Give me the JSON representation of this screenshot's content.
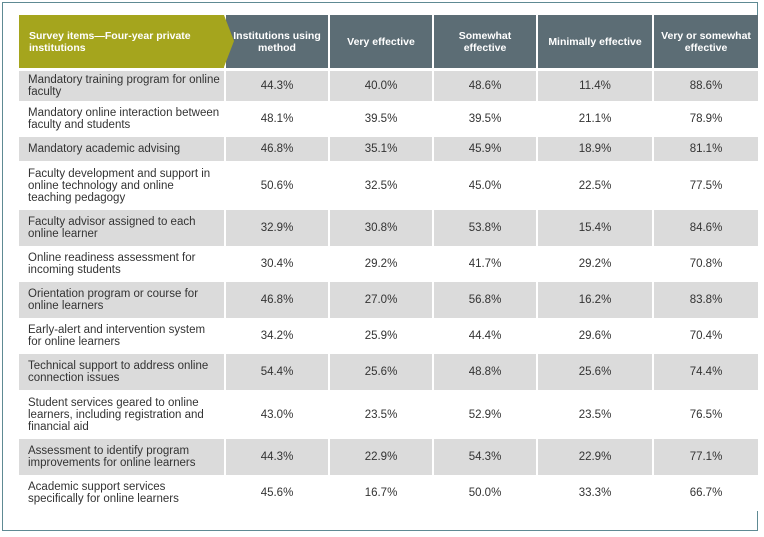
{
  "table": {
    "headers": [
      "Survey items—Four-year private institutions",
      "Institutions using method",
      "Very effective",
      "Somewhat effective",
      "Minimally effective",
      "Very or somewhat effective"
    ],
    "rows": [
      {
        "item": "Mandatory training program for online faculty",
        "values": [
          "44.3%",
          "40.0%",
          "48.6%",
          "11.4%",
          "88.6%"
        ]
      },
      {
        "item": "Mandatory online interaction between faculty and students",
        "values": [
          "48.1%",
          "39.5%",
          "39.5%",
          "21.1%",
          "78.9%"
        ]
      },
      {
        "item": "Mandatory academic advising",
        "values": [
          "46.8%",
          "35.1%",
          "45.9%",
          "18.9%",
          "81.1%"
        ]
      },
      {
        "item": "Faculty development and support in online technology and online teaching pedagogy",
        "values": [
          "50.6%",
          "32.5%",
          "45.0%",
          "22.5%",
          "77.5%"
        ]
      },
      {
        "item": "Faculty advisor assigned to each online learner",
        "values": [
          "32.9%",
          "30.8%",
          "53.8%",
          "15.4%",
          "84.6%"
        ]
      },
      {
        "item": "Online readiness assessment for incoming students",
        "values": [
          "30.4%",
          "29.2%",
          "41.7%",
          "29.2%",
          "70.8%"
        ]
      },
      {
        "item": "Orientation program or course for online learners",
        "values": [
          "46.8%",
          "27.0%",
          "56.8%",
          "16.2%",
          "83.8%"
        ]
      },
      {
        "item": "Early-alert and intervention system for online learners",
        "values": [
          "34.2%",
          "25.9%",
          "44.4%",
          "29.6%",
          "70.4%"
        ]
      },
      {
        "item": "Technical support to address online connection issues",
        "values": [
          "54.4%",
          "25.6%",
          "48.8%",
          "25.6%",
          "74.4%"
        ]
      },
      {
        "item": "Student services geared to online learners, including registration and financial aid",
        "values": [
          "43.0%",
          "23.5%",
          "52.9%",
          "23.5%",
          "76.5%"
        ]
      },
      {
        "item": "Assessment to identify program improvements for online learners",
        "values": [
          "44.3%",
          "22.9%",
          "54.3%",
          "22.9%",
          "77.1%"
        ]
      },
      {
        "item": "Academic support services specifically for online learners",
        "values": [
          "45.6%",
          "16.7%",
          "50.0%",
          "33.3%",
          "66.7%"
        ]
      }
    ]
  },
  "colors": {
    "header_accent": "#a5a51d",
    "header_dark": "#5c6d75",
    "row_shade": "#dbdbdb",
    "border": "#5e8a93"
  }
}
